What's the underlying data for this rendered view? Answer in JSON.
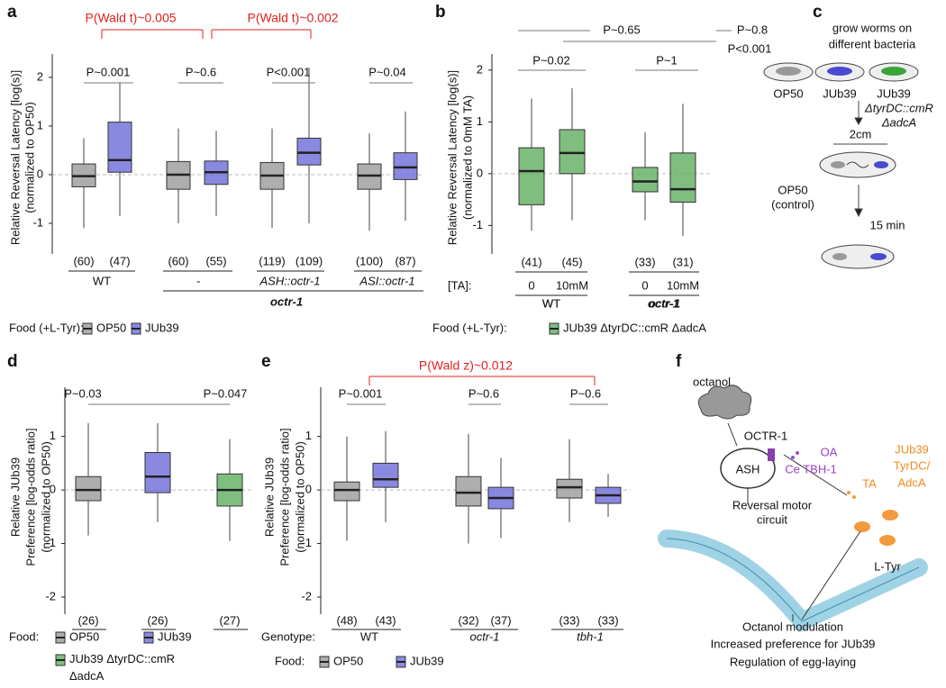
{
  "chart_data": [
    {
      "type": "box",
      "panel": "a",
      "ylabel": [
        "Relative Reversal Latency [log(s)]",
        "(normalized to OP50)"
      ],
      "ylim": [
        -1.63,
        2.48
      ],
      "yticks": [
        -1,
        0,
        1,
        2
      ],
      "series": [
        {
          "name": "OP50",
          "color": "#9a9a9a",
          "boxes": [
            {
              "n": "(60)",
              "low": -1.1,
              "q1": -0.25,
              "median": -0.03,
              "q3": 0.22,
              "high": 0.75
            },
            {
              "n": "(60)",
              "low": -1.0,
              "q1": -0.3,
              "median": 0.0,
              "q3": 0.27,
              "high": 0.95
            },
            {
              "n": "(119)",
              "low": -1.1,
              "q1": -0.3,
              "median": -0.02,
              "q3": 0.25,
              "high": 0.95
            },
            {
              "n": "(100)",
              "low": -1.15,
              "q1": -0.3,
              "median": -0.02,
              "q3": 0.22,
              "high": 0.85
            }
          ]
        },
        {
          "name": "JUb39",
          "color": "#6c6cd9",
          "boxes": [
            {
              "n": "(47)",
              "low": -0.85,
              "q1": 0.05,
              "median": 0.3,
              "q3": 1.08,
              "high": 1.9
            },
            {
              "n": "(55)",
              "low": -0.85,
              "q1": -0.2,
              "median": 0.05,
              "q3": 0.28,
              "high": 0.9
            },
            {
              "n": "(109)",
              "low": -1.0,
              "q1": 0.2,
              "median": 0.45,
              "q3": 0.75,
              "high": 2.2
            },
            {
              "n": "(87)",
              "low": -0.95,
              "q1": -0.1,
              "median": 0.15,
              "q3": 0.45,
              "high": 1.3
            }
          ]
        }
      ],
      "groups": [
        "WT",
        "-",
        "ASH::octr-1",
        "ASI::octr-1"
      ],
      "group_title": "octr-1",
      "annotations": [
        "P~0.001",
        "P~0.6",
        "P<0.001",
        "P~0.04"
      ],
      "red_annotations": [
        "P(Wald t)~0.005",
        "P(Wald t)~0.002"
      ],
      "legend_title": "Food (+L-Tyr):"
    },
    {
      "type": "box",
      "panel": "b",
      "ylabel": [
        "Relative Reversal Latency [log(s)]",
        "(normalized to 0mM TA)"
      ],
      "ylim": [
        -1.55,
        2.31
      ],
      "yticks": [
        -1,
        0,
        1,
        2
      ],
      "series": [
        {
          "name": "JUb39 ΔtyrDC::cmR ΔadcA",
          "color": "#5fae5f",
          "boxes": [
            {
              "n": "(41)",
              "low": -1.1,
              "q1": -0.6,
              "median": 0.05,
              "q3": 0.5,
              "high": 1.45
            },
            {
              "n": "(45)",
              "low": -0.9,
              "q1": 0.0,
              "median": 0.4,
              "q3": 0.85,
              "high": 1.65
            },
            {
              "n": "(33)",
              "low": -0.9,
              "q1": -0.35,
              "median": -0.15,
              "q3": 0.12,
              "high": 0.8
            },
            {
              "n": "(31)",
              "low": -1.2,
              "q1": -0.55,
              "median": -0.3,
              "q3": 0.4,
              "high": 1.35
            }
          ]
        }
      ],
      "row_title": "[TA]:",
      "row_labels": [
        "0",
        "10mM",
        "0",
        "10mM"
      ],
      "groups": [
        "WT",
        "octr-1"
      ],
      "annotations": [
        "P~0.65",
        "P~0.8",
        "P<0.001",
        "P~0.02",
        "P~1"
      ],
      "legend_title": "Food (+L-Tyr):"
    },
    {
      "type": "box",
      "panel": "d",
      "ylabel": [
        "Relative JUb39",
        "Preference [log-odds ratio]",
        "(normalized to OP50)"
      ],
      "ylim": [
        -2.32,
        1.92
      ],
      "yticks": [
        -2,
        -1,
        0,
        1
      ],
      "series": [
        {
          "name": "OP50",
          "color": "#9a9a9a",
          "boxes": [
            {
              "n": "(26)",
              "low": -0.85,
              "q1": -0.2,
              "median": 0.0,
              "q3": 0.25,
              "high": 1.25
            }
          ]
        },
        {
          "name": "JUb39",
          "color": "#6c6cd9",
          "boxes": [
            {
              "n": "(26)",
              "low": -0.6,
              "q1": -0.05,
              "median": 0.25,
              "q3": 0.7,
              "high": 1.25
            }
          ]
        },
        {
          "name": "JUb39 ΔtyrDC::cmR ΔadcA",
          "color": "#5fae5f",
          "boxes": [
            {
              "n": "(27)",
              "low": -0.95,
              "q1": -0.3,
              "median": 0.0,
              "q3": 0.3,
              "high": 0.95
            }
          ]
        }
      ],
      "annotations": [
        "P~0.03",
        "P~0.047"
      ],
      "legend_title": "Food:"
    },
    {
      "type": "box",
      "panel": "e",
      "ylabel": [
        "Relative JUb39",
        "Preference [log-odds ratio]",
        "(normalized to OP50)"
      ],
      "ylim": [
        -2.32,
        1.92
      ],
      "yticks": [
        -2,
        -1,
        0,
        1
      ],
      "series": [
        {
          "name": "OP50",
          "color": "#9a9a9a",
          "boxes": [
            {
              "n": "(48)",
              "low": -0.95,
              "q1": -0.2,
              "median": 0.0,
              "q3": 0.15,
              "high": 1.0
            },
            {
              "n": "(32)",
              "low": -1.0,
              "q1": -0.3,
              "median": -0.05,
              "q3": 0.25,
              "high": 1.05
            },
            {
              "n": "(33)",
              "low": -0.6,
              "q1": -0.15,
              "median": 0.05,
              "q3": 0.2,
              "high": 0.95
            }
          ]
        },
        {
          "name": "JUb39",
          "color": "#6c6cd9",
          "boxes": [
            {
              "n": "(43)",
              "low": -0.6,
              "q1": 0.05,
              "median": 0.2,
              "q3": 0.5,
              "high": 1.1
            },
            {
              "n": "(37)",
              "low": -0.9,
              "q1": -0.35,
              "median": -0.15,
              "q3": 0.05,
              "high": 0.6
            },
            {
              "n": "(33)",
              "low": -0.5,
              "q1": -0.25,
              "median": -0.1,
              "q3": 0.05,
              "high": 0.3
            }
          ]
        }
      ],
      "row_title": "Genotype:",
      "groups": [
        "WT",
        "octr-1",
        "tbh-1"
      ],
      "annotations": [
        "P~0.001",
        "P~0.6",
        "P~0.6"
      ],
      "red_annotations": [
        "P(Wald z)~0.012"
      ],
      "legend_title": "Food:"
    }
  ],
  "panel_c": {
    "label": "c",
    "texts": [
      "grow worms on",
      "different bacteria",
      "OP50",
      "JUb39",
      "JUb39",
      "ΔtyrDC::cmR",
      "ΔadcA",
      "2cm",
      "OP50",
      "(control)",
      "15 min"
    ]
  },
  "panel_f": {
    "label": "f",
    "texts": [
      "octanol",
      "OCTR-1",
      "OA",
      "Ce TBH-1",
      "ASH",
      "JUb39",
      "TyrDC/",
      "AdcA",
      "TA",
      "Reversal motor",
      "circuit",
      "L-Tyr",
      "Octanol modulation",
      "Increased preference for JUb39",
      "Regulation of egg-laying"
    ]
  }
}
